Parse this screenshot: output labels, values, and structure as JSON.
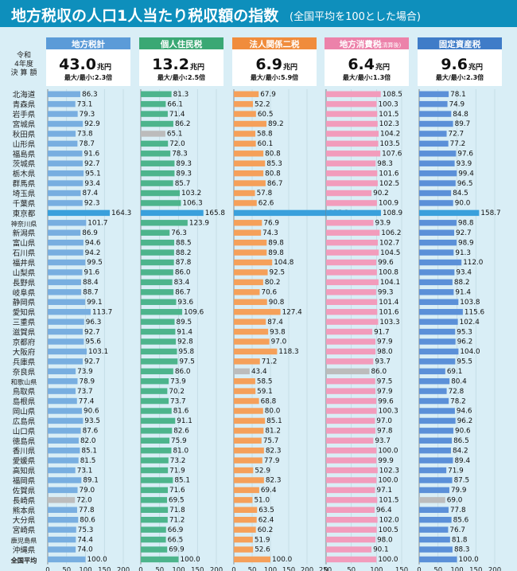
{
  "title": "地方税収の人口1人当たり税収額の指数",
  "subtitle": "(全国平均を100とした場合)",
  "year_label": [
    "令和",
    "4年度",
    "決 算 額"
  ],
  "colors": {
    "title_bg": "#0e8fbc",
    "highlight_bar": "#3aa0dc",
    "low_bar": "#bcbcbc"
  },
  "chart_data": [
    {
      "type": "bar",
      "name": "地方税計",
      "total_num": "43.0",
      "total_unit": "兆円",
      "ratio": "最大/最小:2.3倍",
      "color": "#78aee0",
      "header": "#5b9bd8",
      "xlim": [
        0,
        200
      ],
      "ticks": [
        0,
        50,
        100,
        150,
        200
      ],
      "values": [
        86.3,
        73.1,
        79.3,
        92.9,
        73.8,
        78.7,
        91.6,
        92.7,
        95.1,
        93.4,
        87.4,
        92.3,
        164.3,
        101.7,
        86.9,
        94.6,
        94.2,
        99.5,
        91.6,
        88.4,
        88.7,
        99.1,
        113.7,
        96.3,
        92.7,
        95.6,
        103.1,
        92.7,
        73.9,
        78.9,
        73.7,
        77.4,
        90.6,
        93.5,
        87.6,
        82.0,
        85.1,
        81.5,
        73.1,
        89.1,
        79.0,
        72.0,
        77.8,
        80.6,
        75.3,
        74.4,
        74.0,
        100.0
      ],
      "max_index": 12,
      "min_index": 41
    },
    {
      "type": "bar",
      "name": "個人住民税",
      "total_num": "13.2",
      "total_unit": "兆円",
      "ratio": "最大/最小:2.5倍",
      "color": "#4db48c",
      "header": "#3aa874",
      "xlim": [
        0,
        200
      ],
      "ticks": [
        0,
        50,
        100,
        150,
        200
      ],
      "values": [
        81.3,
        66.1,
        71.4,
        86.2,
        65.1,
        72.0,
        78.3,
        89.3,
        89.3,
        85.7,
        103.2,
        106.3,
        165.8,
        123.9,
        76.3,
        88.5,
        88.2,
        87.8,
        86.0,
        83.4,
        86.7,
        93.6,
        109.6,
        89.5,
        91.4,
        92.8,
        95.8,
        97.5,
        86.0,
        73.9,
        70.2,
        73.7,
        81.6,
        91.1,
        82.6,
        75.9,
        81.0,
        73.2,
        71.9,
        85.1,
        71.6,
        69.5,
        71.8,
        71.2,
        66.9,
        66.5,
        69.9,
        100.0
      ],
      "max_index": 12,
      "min_index": 4
    },
    {
      "type": "bar",
      "name": "法人関係二税",
      "total_num": "6.9",
      "total_unit": "兆円",
      "ratio": "最大/最小:5.9倍",
      "color": "#f5a05a",
      "header": "#f08c3c",
      "xlim": [
        0,
        250
      ],
      "ticks": [
        0,
        50,
        100,
        150,
        200,
        250
      ],
      "values": [
        67.9,
        52.2,
        60.5,
        89.2,
        58.8,
        60.1,
        80.8,
        85.3,
        80.8,
        86.7,
        57.8,
        62.6,
        255.2,
        76.9,
        74.3,
        89.8,
        89.8,
        104.8,
        92.5,
        80.2,
        70.6,
        90.8,
        127.4,
        87.4,
        93.8,
        97.0,
        118.3,
        71.2,
        43.4,
        58.5,
        59.1,
        68.8,
        80.0,
        85.1,
        81.2,
        75.7,
        82.3,
        77.9,
        52.9,
        82.3,
        69.4,
        51.0,
        63.5,
        62.4,
        60.2,
        51.9,
        52.6,
        100.0
      ],
      "max_index": 12,
      "min_index": 28
    },
    {
      "type": "bar",
      "name": "地方消費税",
      "name_note": "(清算後)",
      "total_num": "6.4",
      "total_unit": "兆円",
      "ratio": "最大/最小:1.3倍",
      "color": "#f29cbc",
      "header": "#ec82aa",
      "xlim": [
        0,
        150
      ],
      "ticks": [
        0,
        50,
        100,
        150
      ],
      "values": [
        108.5,
        100.3,
        101.5,
        102.3,
        104.2,
        103.5,
        107.6,
        98.3,
        101.6,
        102.5,
        90.2,
        100.9,
        108.9,
        93.9,
        106.2,
        102.7,
        104.5,
        99.6,
        100.8,
        104.1,
        99.3,
        101.4,
        101.6,
        103.3,
        91.7,
        97.9,
        98.0,
        93.7,
        86.0,
        97.5,
        97.9,
        99.6,
        100.3,
        97.0,
        97.8,
        93.7,
        100.0,
        99.9,
        102.3,
        100.0,
        97.1,
        101.5,
        96.4,
        102.0,
        100.5,
        98.0,
        90.1,
        100.0
      ],
      "max_index": 12,
      "min_index": 28
    },
    {
      "type": "bar",
      "name": "固定資産税",
      "total_num": "9.6",
      "total_unit": "兆円",
      "ratio": "最大/最小:2.3倍",
      "color": "#5b90d8",
      "header": "#3f7cc8",
      "xlim": [
        0,
        200
      ],
      "ticks": [
        0,
        50,
        100,
        150,
        200
      ],
      "values": [
        78.1,
        74.9,
        84.8,
        89.7,
        72.7,
        77.2,
        97.6,
        93.9,
        99.4,
        96.5,
        84.5,
        90.0,
        158.7,
        98.8,
        92.7,
        98.9,
        91.3,
        112.0,
        93.4,
        88.2,
        91.4,
        103.8,
        115.6,
        102.4,
        95.3,
        96.2,
        104.0,
        95.5,
        69.1,
        80.4,
        72.8,
        78.2,
        94.6,
        96.2,
        90.6,
        86.5,
        84.2,
        89.4,
        71.9,
        87.5,
        79.9,
        69.0,
        77.8,
        85.6,
        76.7,
        81.8,
        88.3,
        100.0
      ],
      "max_index": 12,
      "min_index": 41
    }
  ],
  "prefectures": [
    "北海道",
    "青森県",
    "岩手県",
    "宮城県",
    "秋田県",
    "山形県",
    "福島県",
    "茨城県",
    "栃木県",
    "群馬県",
    "埼玉県",
    "千葉県",
    "東京都",
    "神奈川県",
    "新潟県",
    "富山県",
    "石川県",
    "福井県",
    "山梨県",
    "長野県",
    "岐阜県",
    "静岡県",
    "愛知県",
    "三重県",
    "滋賀県",
    "京都府",
    "大阪府",
    "兵庫県",
    "奈良県",
    "和歌山県",
    "鳥取県",
    "島根県",
    "岡山県",
    "広島県",
    "山口県",
    "徳島県",
    "香川県",
    "愛媛県",
    "高知県",
    "福岡県",
    "佐賀県",
    "長崎県",
    "熊本県",
    "大分県",
    "宮崎県",
    "鹿児島県",
    "沖縄県",
    "全国平均"
  ]
}
